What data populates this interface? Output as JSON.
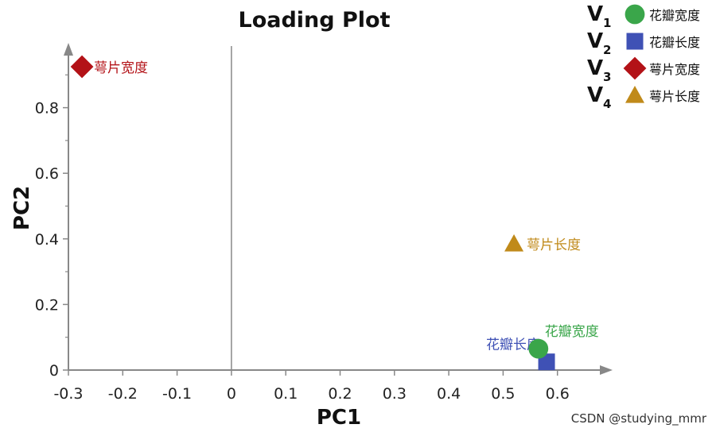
{
  "chart_data": {
    "type": "scatter",
    "title": "Loading Plot",
    "xlabel": "PC1",
    "ylabel": "PC2",
    "xlim": [
      -0.3,
      0.65
    ],
    "ylim": [
      0,
      0.9
    ],
    "x_ticks": [
      "-0.3",
      "-0.2",
      "-0.1",
      "0",
      "0.1",
      "0.2",
      "0.3",
      "0.4",
      "0.5",
      "0.6"
    ],
    "y_ticks": [
      "0",
      "0.2",
      "0.4",
      "0.6",
      "0.8"
    ],
    "grid": false,
    "legend_position": "top-right",
    "points": [
      {
        "var": "V",
        "sub": "1",
        "name": "花瓣宽度",
        "x": 0.565,
        "y": 0.065,
        "marker": "circle",
        "color": "#3aa64a"
      },
      {
        "var": "V",
        "sub": "2",
        "name": "花瓣长度",
        "x": 0.58,
        "y": 0.025,
        "marker": "square",
        "color": "#3f51b5"
      },
      {
        "var": "V",
        "sub": "3",
        "name": "萼片宽度",
        "x": -0.275,
        "y": 0.925,
        "marker": "diamond",
        "color": "#b31217"
      },
      {
        "var": "V",
        "sub": "4",
        "name": "萼片长度",
        "x": 0.52,
        "y": 0.385,
        "marker": "triangle",
        "color": "#c08a1a"
      }
    ],
    "legend_labels": [
      "花瓣宽度",
      "花瓣长度",
      "萼片宽度",
      "萼片长度"
    ]
  },
  "watermark": "CSDN @studying_mmr"
}
